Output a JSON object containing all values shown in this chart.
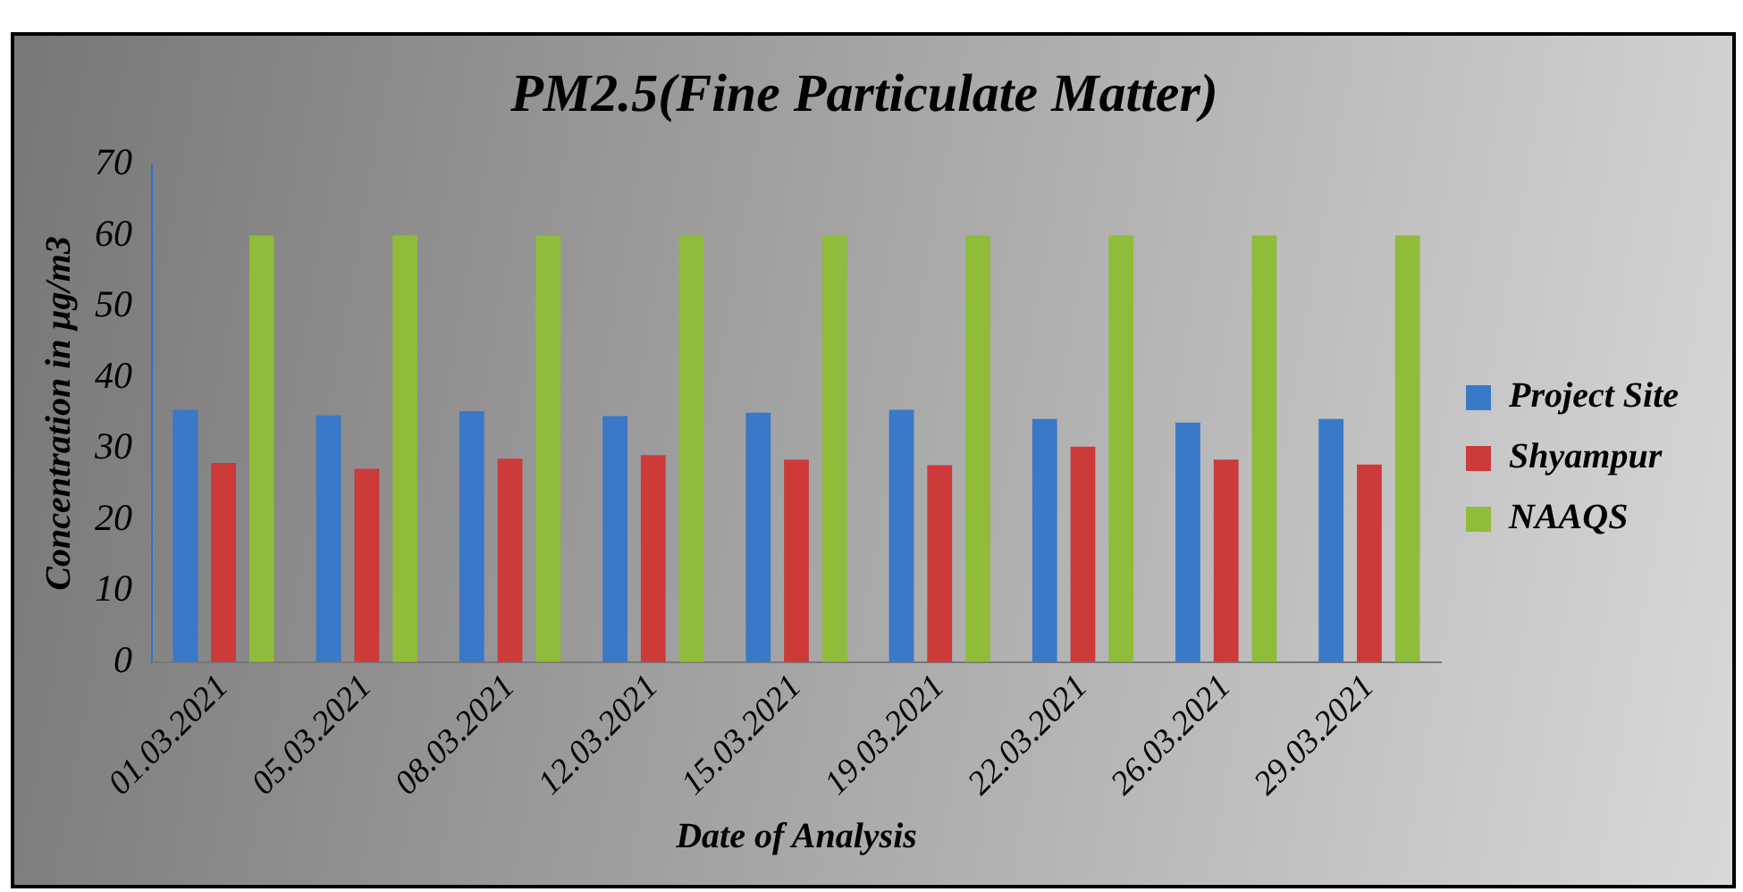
{
  "chart_data": {
    "type": "bar",
    "title": "PM2.5(Fine Particulate Matter)",
    "xlabel": "Date of Analysis",
    "ylabel": "Concentration in µg/m3",
    "categories": [
      "01.03.2021",
      "05.03.2021",
      "08.03.2021",
      "12.03.2021",
      "15.03.2021",
      "19.03.2021",
      "22.03.2021",
      "26.03.2021",
      "29.03.2021"
    ],
    "series": [
      {
        "name": "Project Site",
        "color": "#3a78c8",
        "values": [
          35.5,
          34.7,
          35.3,
          34.6,
          35.1,
          35.5,
          34.2,
          33.7,
          34.2
        ]
      },
      {
        "name": "Shyampur",
        "color": "#cc3a3a",
        "values": [
          28,
          27.2,
          28.6,
          29.1,
          28.5,
          27.7,
          30.3,
          28.5,
          27.8
        ]
      },
      {
        "name": "NAAQS",
        "color": "#8fbc3a",
        "values": [
          60,
          60,
          60,
          60,
          60,
          60,
          60,
          60,
          60
        ]
      }
    ],
    "ylim": [
      0,
      70
    ],
    "yticks": [
      0,
      10,
      20,
      30,
      40,
      50,
      60,
      70
    ],
    "grid": false,
    "legend": "right"
  }
}
